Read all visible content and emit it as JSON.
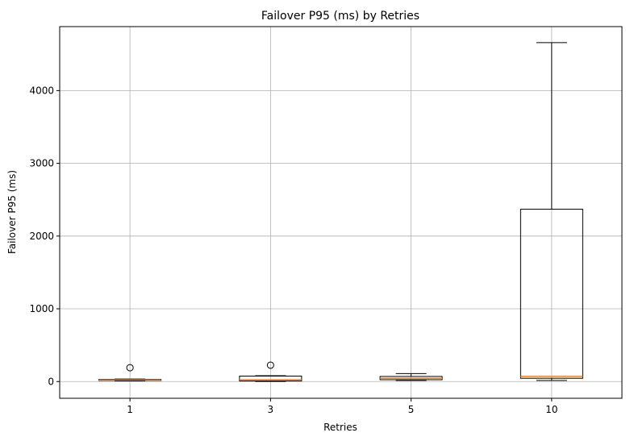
{
  "chart_data": {
    "type": "box",
    "title": "Failover P95 (ms) by Retries",
    "xlabel": "Retries",
    "ylabel": "Failover P95 (ms)",
    "categories": [
      "1",
      "3",
      "5",
      "10"
    ],
    "ylim": [
      -230,
      4880
    ],
    "yticks": [
      0,
      1000,
      2000,
      3000,
      4000
    ],
    "grid": true,
    "boxes": [
      {
        "category": "1",
        "whisker_low": 8,
        "q1": 15,
        "median": 22,
        "q3": 30,
        "whisker_high": 35,
        "outliers": [
          190
        ]
      },
      {
        "category": "3",
        "whisker_low": 2,
        "q1": 8,
        "median": 25,
        "q3": 75,
        "whisker_high": 80,
        "outliers": [
          225
        ]
      },
      {
        "category": "5",
        "whisker_low": 15,
        "q1": 25,
        "median": 45,
        "q3": 70,
        "whisker_high": 110,
        "outliers": []
      },
      {
        "category": "10",
        "whisker_low": 15,
        "q1": 45,
        "median": 70,
        "q3": 2370,
        "whisker_high": 4660,
        "outliers": []
      }
    ],
    "colors": {
      "box": "#000000",
      "median": "#ff7f0e",
      "grid": "#b0b0b0"
    }
  }
}
